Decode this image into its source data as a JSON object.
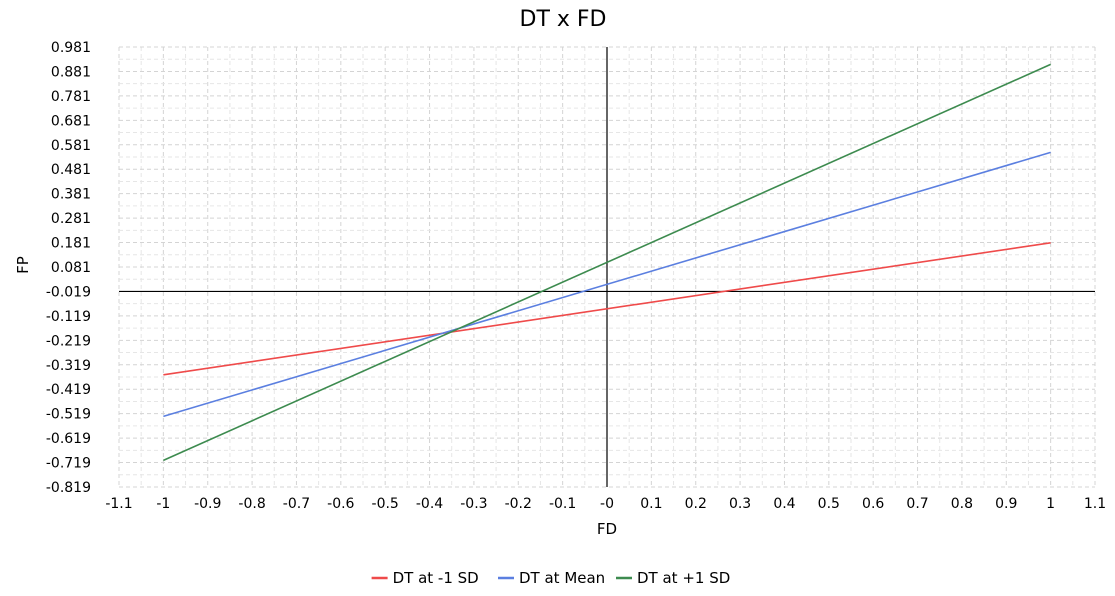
{
  "chart_data": {
    "type": "line",
    "title": "DT x FD",
    "xlabel": "FD",
    "ylabel": "FP",
    "xlim": [
      -1.1,
      1.1
    ],
    "ylim": [
      -0.819,
      0.981
    ],
    "x_ticks": [
      "-1.1",
      "-1",
      "-0.9",
      "-0.8",
      "-0.7",
      "-0.6",
      "-0.5",
      "-0.4",
      "-0.3",
      "-0.2",
      "-0.1",
      "-0",
      "0.1",
      "0.2",
      "0.3",
      "0.4",
      "0.5",
      "0.6",
      "0.7",
      "0.8",
      "0.9",
      "1",
      "1.1"
    ],
    "y_ticks": [
      "0.981",
      "0.881",
      "0.781",
      "0.681",
      "0.581",
      "0.481",
      "0.381",
      "0.281",
      "0.181",
      "0.081",
      "-0.019",
      "-0.119",
      "-0.219",
      "-0.319",
      "-0.419",
      "-0.519",
      "-0.619",
      "-0.719",
      "-0.819"
    ],
    "grid": true,
    "legend_position": "bottom",
    "series": [
      {
        "name": "DT at -1 SD",
        "color": "#ef4a4a",
        "x": [
          -1,
          1
        ],
        "y": [
          -0.36,
          0.18
        ]
      },
      {
        "name": "DT at Mean",
        "color": "#5b7fe0",
        "x": [
          -1,
          1
        ],
        "y": [
          -0.53,
          0.55
        ]
      },
      {
        "name": "DT at +1 SD",
        "color": "#3d8b4f",
        "x": [
          -1,
          1
        ],
        "y": [
          -0.71,
          0.91
        ]
      }
    ]
  }
}
